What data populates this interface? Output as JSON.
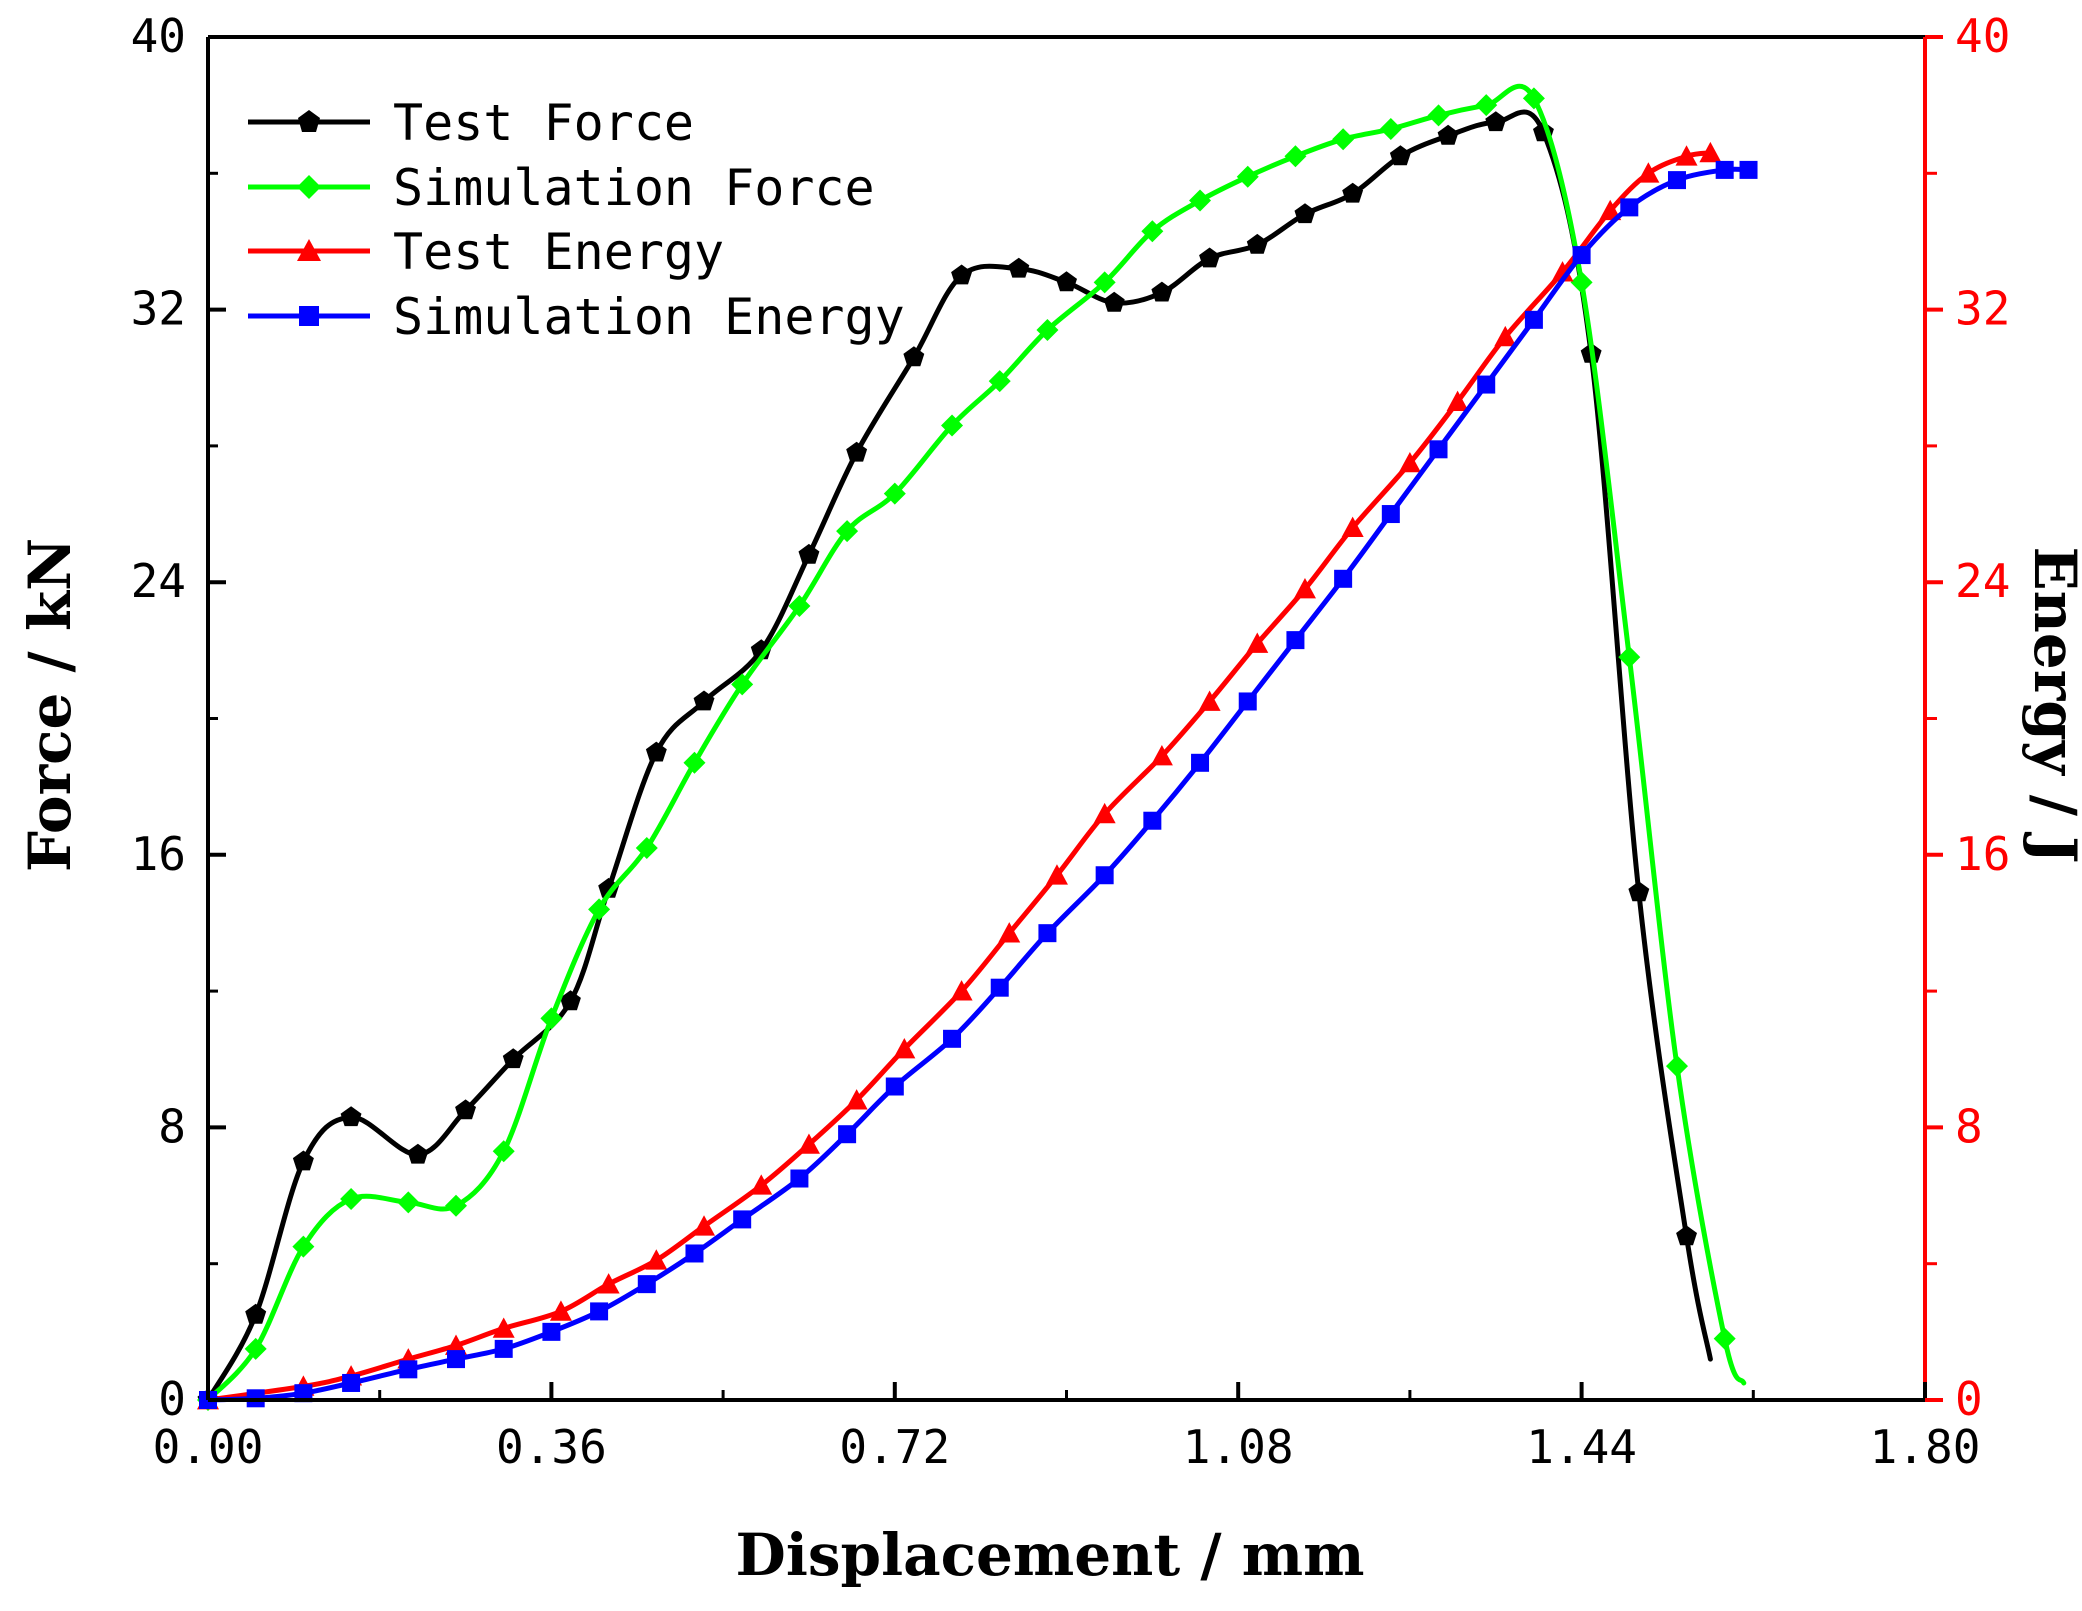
{
  "chart_data": {
    "type": "line",
    "title": "",
    "xlabel": "Displacement / mm",
    "ylabel_left": "Force / kN",
    "ylabel_right": "Energy / J",
    "xlim": [
      0,
      1.8
    ],
    "ylim_left": [
      0,
      40
    ],
    "ylim_right": [
      0,
      40
    ],
    "x_ticks": [
      "0.00",
      "0.36",
      "0.72",
      "1.08",
      "1.44",
      "1.80"
    ],
    "y_ticks_left": [
      "0",
      "8",
      "16",
      "24",
      "32",
      "40"
    ],
    "y_ticks_right": [
      "0",
      "8",
      "16",
      "24",
      "32",
      "40"
    ],
    "grid": false,
    "legend_position": "top-left",
    "colors": {
      "axis_left": "#000000",
      "axis_right": "#ff0000"
    },
    "series": [
      {
        "name": "Test Force",
        "axis": "left",
        "color": "#000000",
        "marker": "pentagon",
        "x": [
          0.0,
          0.05,
          0.1,
          0.15,
          0.22,
          0.27,
          0.32,
          0.38,
          0.42,
          0.47,
          0.52,
          0.58,
          0.63,
          0.68,
          0.74,
          0.79,
          0.85,
          0.9,
          0.95,
          1.0,
          1.05,
          1.1,
          1.15,
          1.2,
          1.25,
          1.3,
          1.35,
          1.4,
          1.45,
          1.5,
          1.55,
          1.575
        ],
        "y": [
          0.0,
          2.5,
          7.0,
          8.3,
          7.2,
          8.5,
          10.0,
          11.7,
          15.0,
          19.0,
          20.5,
          22.0,
          24.8,
          27.8,
          30.6,
          33.0,
          33.2,
          32.8,
          32.2,
          32.5,
          33.5,
          33.9,
          34.8,
          35.4,
          36.5,
          37.1,
          37.5,
          37.2,
          30.7,
          14.9,
          4.8,
          1.2
        ]
      },
      {
        "name": "Simulation Force",
        "axis": "left",
        "color": "#00ff00",
        "marker": "diamond",
        "x": [
          0.0,
          0.05,
          0.1,
          0.15,
          0.21,
          0.26,
          0.31,
          0.36,
          0.41,
          0.46,
          0.51,
          0.56,
          0.62,
          0.67,
          0.72,
          0.78,
          0.83,
          0.88,
          0.94,
          0.99,
          1.04,
          1.09,
          1.14,
          1.19,
          1.24,
          1.29,
          1.34,
          1.39,
          1.44,
          1.49,
          1.54,
          1.59,
          1.61
        ],
        "y": [
          0.0,
          1.5,
          4.5,
          5.9,
          5.8,
          5.7,
          7.3,
          11.2,
          14.4,
          16.2,
          18.7,
          21.0,
          23.3,
          25.5,
          26.6,
          28.6,
          29.9,
          31.4,
          32.8,
          34.3,
          35.2,
          35.9,
          36.5,
          37.0,
          37.3,
          37.7,
          38.0,
          38.2,
          32.8,
          21.8,
          9.8,
          1.8,
          0.5
        ]
      },
      {
        "name": "Test Energy",
        "axis": "right",
        "color": "#ff0000",
        "marker": "triangle",
        "x": [
          0.0,
          0.1,
          0.15,
          0.21,
          0.26,
          0.31,
          0.37,
          0.42,
          0.47,
          0.52,
          0.58,
          0.63,
          0.68,
          0.73,
          0.79,
          0.84,
          0.89,
          0.94,
          1.0,
          1.05,
          1.1,
          1.15,
          1.2,
          1.26,
          1.31,
          1.36,
          1.42,
          1.47,
          1.51,
          1.55,
          1.575
        ],
        "y": [
          0.0,
          0.4,
          0.7,
          1.2,
          1.6,
          2.1,
          2.6,
          3.4,
          4.1,
          5.1,
          6.3,
          7.5,
          8.8,
          10.3,
          12.0,
          13.7,
          15.4,
          17.2,
          18.9,
          20.5,
          22.2,
          23.8,
          25.6,
          27.5,
          29.3,
          31.2,
          33.1,
          34.9,
          36.0,
          36.5,
          36.6
        ]
      },
      {
        "name": "Simulation Energy",
        "axis": "right",
        "color": "#0000ff",
        "marker": "square",
        "x": [
          0.0,
          0.05,
          0.1,
          0.15,
          0.21,
          0.26,
          0.31,
          0.36,
          0.41,
          0.46,
          0.51,
          0.56,
          0.62,
          0.67,
          0.72,
          0.78,
          0.83,
          0.88,
          0.94,
          0.99,
          1.04,
          1.09,
          1.14,
          1.19,
          1.24,
          1.29,
          1.34,
          1.39,
          1.44,
          1.49,
          1.54,
          1.59,
          1.615
        ],
        "y": [
          0.0,
          0.05,
          0.2,
          0.5,
          0.9,
          1.2,
          1.5,
          2.0,
          2.6,
          3.4,
          4.3,
          5.3,
          6.5,
          7.8,
          9.2,
          10.6,
          12.1,
          13.7,
          15.4,
          17.0,
          18.7,
          20.5,
          22.3,
          24.1,
          26.0,
          27.9,
          29.8,
          31.7,
          33.6,
          35.0,
          35.8,
          36.1,
          36.1
        ]
      }
    ]
  }
}
